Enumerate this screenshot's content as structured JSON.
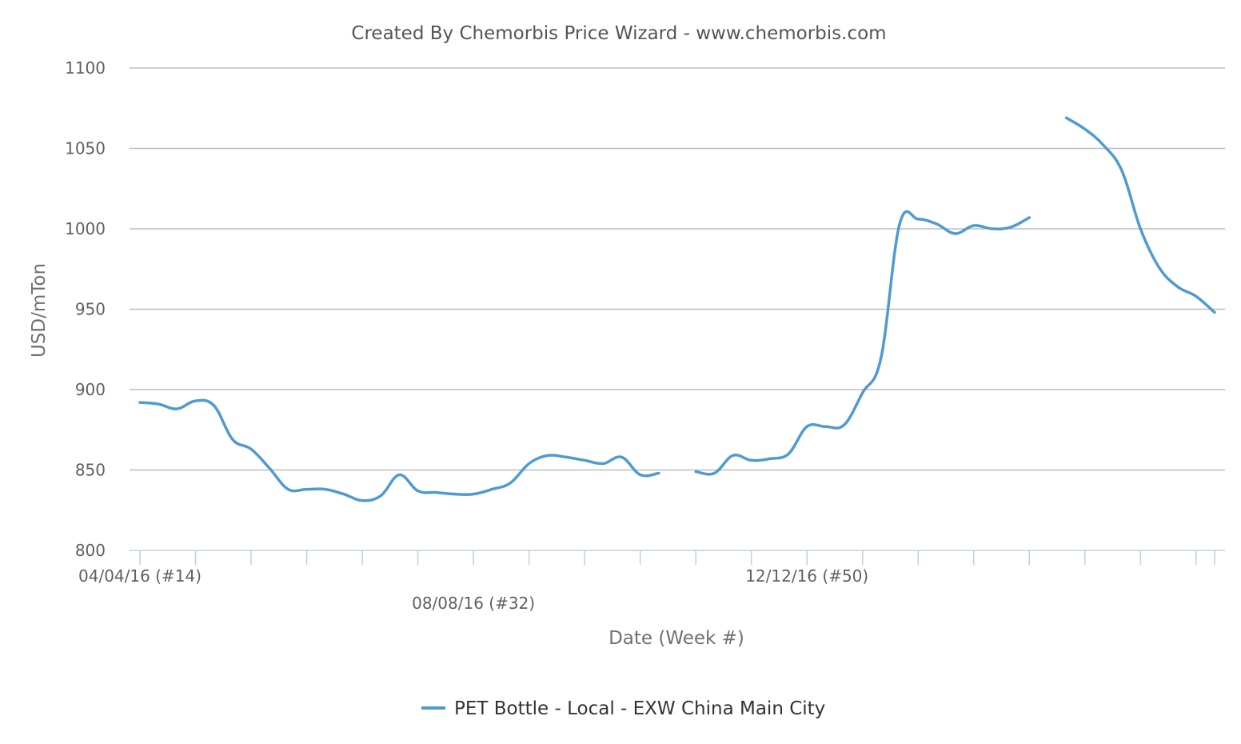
{
  "chart_data": {
    "type": "line",
    "title": "Created By Chemorbis Price Wizard - www.chemorbis.com",
    "xlabel": "Date (Week #)",
    "ylabel": "USD/mTon",
    "ylim": [
      800,
      1100
    ],
    "yticks": [
      "800",
      "850",
      "900",
      "950",
      "1000",
      "1050",
      "1100"
    ],
    "xtick_labels": [
      {
        "label": "04/04/16 (#14)",
        "week": 14
      },
      {
        "label": "08/08/16 (#32)",
        "week": 32
      },
      {
        "label": "12/12/16 (#50)",
        "week": 50
      }
    ],
    "xlim_weeks": [
      13.4,
      67.5
    ],
    "grid": true,
    "legend_position": "bottom-center",
    "series": [
      {
        "name": "PET Bottle - Local - EXW China Main City",
        "color": "#4f9bd0",
        "points": [
          [
            14,
            892
          ],
          [
            15,
            891
          ],
          [
            16,
            888
          ],
          [
            17,
            893
          ],
          [
            18,
            890
          ],
          [
            19,
            869
          ],
          [
            20,
            863
          ],
          [
            21,
            851
          ],
          [
            22,
            838
          ],
          [
            23,
            838
          ],
          [
            24,
            838
          ],
          [
            25,
            835
          ],
          [
            26,
            831
          ],
          [
            27,
            834
          ],
          [
            28,
            847
          ],
          [
            29,
            837
          ],
          [
            30,
            836
          ],
          [
            31,
            835
          ],
          [
            32,
            835
          ],
          [
            33,
            838
          ],
          [
            34,
            842
          ],
          [
            35,
            854
          ],
          [
            36,
            859
          ],
          [
            37,
            858
          ],
          [
            38,
            856
          ],
          [
            39,
            854
          ],
          [
            40,
            858
          ],
          [
            41,
            847
          ],
          [
            42,
            848
          ],
          [
            43,
            null
          ],
          [
            44,
            849
          ],
          [
            45,
            848
          ],
          [
            46,
            859
          ],
          [
            47,
            856
          ],
          [
            48,
            857
          ],
          [
            49,
            860
          ],
          [
            50,
            877
          ],
          [
            51,
            877
          ],
          [
            52,
            878
          ],
          [
            53,
            898
          ],
          [
            54,
            920
          ],
          [
            55,
            1003
          ],
          [
            56,
            1006
          ],
          [
            57,
            1003
          ],
          [
            58,
            997
          ],
          [
            59,
            1002
          ],
          [
            60,
            1000
          ],
          [
            61,
            1001
          ],
          [
            62,
            1007
          ],
          [
            63,
            null
          ],
          [
            64,
            1069
          ],
          [
            65,
            1062
          ],
          [
            66,
            1052
          ],
          [
            67,
            1036
          ],
          [
            68,
            1000
          ],
          [
            69,
            976
          ],
          [
            70,
            964
          ],
          [
            71,
            958
          ],
          [
            72,
            948
          ]
        ]
      }
    ]
  }
}
